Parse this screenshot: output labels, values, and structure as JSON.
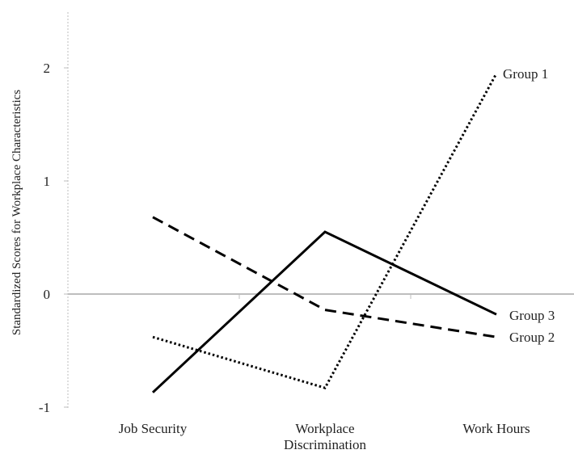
{
  "chart_data": {
    "type": "line",
    "title": "",
    "xlabel": "",
    "ylabel": "Standardized Scores for Workplace Characteristics",
    "ylim": [
      -1,
      2.5
    ],
    "yticks": [
      "2",
      "1",
      "0",
      "-1"
    ],
    "categories": [
      [
        "Job Security"
      ],
      [
        "Workplace",
        "Discrimination"
      ],
      [
        "Work Hours"
      ]
    ],
    "series": [
      {
        "name": "Group 1",
        "values": [
          -0.38,
          -0.83,
          1.95
        ],
        "style": "dotted"
      },
      {
        "name": "Group 2",
        "values": [
          0.68,
          -0.14,
          -0.38
        ],
        "style": "dashed"
      },
      {
        "name": "Group 3",
        "values": [
          -0.87,
          0.55,
          -0.18
        ],
        "style": "solid"
      }
    ],
    "grid": false,
    "legend": "labels at line ends",
    "colors": {
      "line": "#000000",
      "axis": "#bdbdbd"
    }
  }
}
